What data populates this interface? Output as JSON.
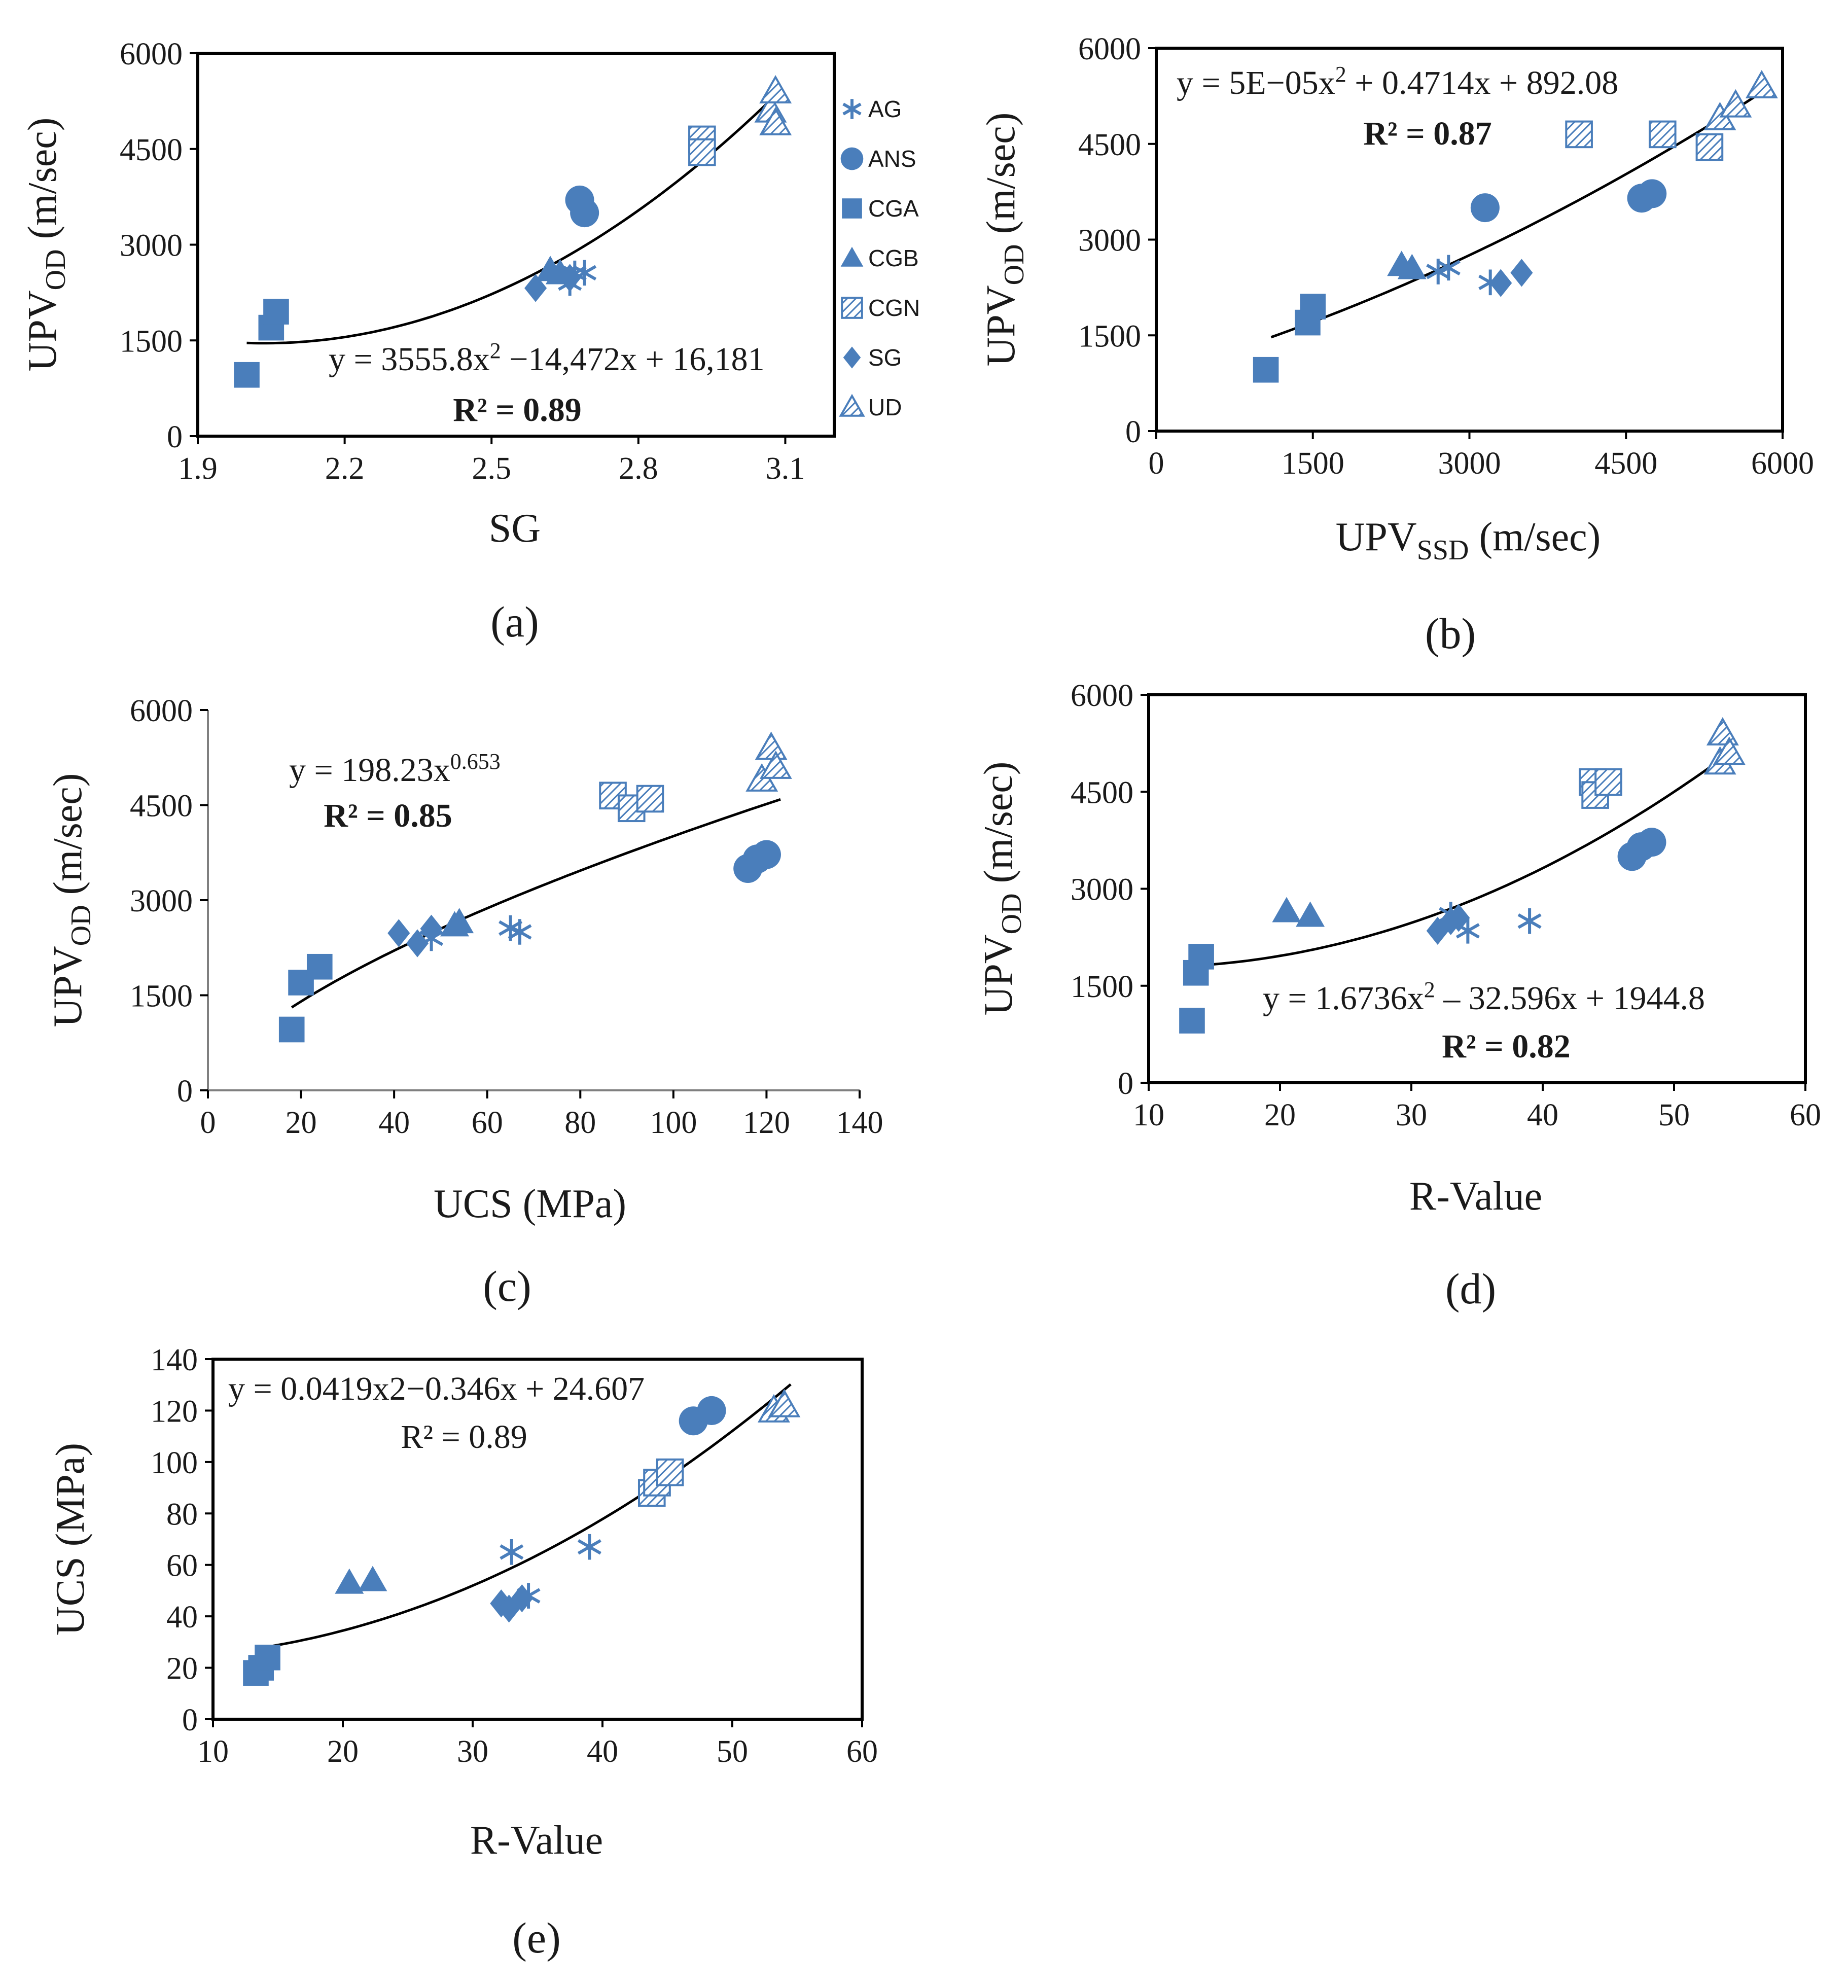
{
  "figure": {
    "marker_color": "#4a7ebb",
    "axis_color": "#000000",
    "trend_color": "#000000",
    "legend": [
      {
        "key": "AG",
        "label": "AG",
        "marker": "asterisk"
      },
      {
        "key": "ANS",
        "label": "ANS",
        "marker": "circle"
      },
      {
        "key": "CGA",
        "label": "CGA",
        "marker": "square"
      },
      {
        "key": "CGB",
        "label": "CGB",
        "marker": "triangle"
      },
      {
        "key": "CGN",
        "label": "CGN",
        "marker": "hatched-square"
      },
      {
        "key": "SG",
        "label": "SG",
        "marker": "diamond"
      },
      {
        "key": "UD",
        "label": "UD",
        "marker": "hatched-triangle"
      }
    ]
  },
  "chart_data": [
    {
      "id": "a",
      "type": "scatter",
      "caption": "(a)",
      "xlabel": "SG",
      "ylabel_main": "UPV",
      "ylabel_sub": "OD",
      "ylabel_tail": " (m/sec)",
      "xlim": [
        1.9,
        3.2
      ],
      "ylim": [
        0,
        6000
      ],
      "xticks": [
        1.9,
        2.2,
        2.5,
        2.8,
        3.1
      ],
      "xtick_labels": [
        "1.9",
        "2.2",
        "2.5",
        "2.8",
        "3.1"
      ],
      "yticks": [
        0,
        1500,
        3000,
        4500,
        6000
      ],
      "ytick_labels": [
        "0",
        "1500",
        "3000",
        "4500",
        "6000"
      ],
      "equation": {
        "pre": "y = 3555.8x",
        "sup": "2",
        "post": " −14,472x + 16,181"
      },
      "r2": "R² = 0.89",
      "r2_bold": true,
      "trend": {
        "kind": "poly",
        "coef": [
          16181,
          -14472,
          3555.8
        ],
        "xrange": [
          2.0,
          3.08
        ]
      },
      "series": [
        {
          "name": "AG",
          "points": [
            [
              2.66,
              2400
            ],
            [
              2.67,
              2550
            ],
            [
              2.69,
              2560
            ]
          ]
        },
        {
          "name": "ANS",
          "points": [
            [
              2.68,
              3700
            ],
            [
              2.69,
              3500
            ]
          ]
        },
        {
          "name": "CGA",
          "points": [
            [
              2.0,
              960
            ],
            [
              2.05,
              1700
            ],
            [
              2.06,
              1950
            ]
          ]
        },
        {
          "name": "CGB",
          "points": [
            [
              2.62,
              2600
            ],
            [
              2.64,
              2550
            ]
          ]
        },
        {
          "name": "CGN",
          "points": [
            [
              2.93,
              4650
            ],
            [
              2.93,
              4450
            ]
          ]
        },
        {
          "name": "SG",
          "points": [
            [
              2.59,
              2320
            ],
            [
              2.66,
              2480
            ]
          ]
        },
        {
          "name": "UD",
          "points": [
            [
              3.07,
              5100
            ],
            [
              3.08,
              5400
            ],
            [
              3.08,
              4900
            ]
          ]
        }
      ]
    },
    {
      "id": "b",
      "type": "scatter",
      "caption": "(b)",
      "xlabel_main": "UPV",
      "xlabel_sub": "SSD",
      "xlabel_tail": " (m/sec)",
      "ylabel_main": "UPV",
      "ylabel_sub": "OD",
      "ylabel_tail": " (m/sec)",
      "xlim": [
        0,
        6000
      ],
      "ylim": [
        0,
        6000
      ],
      "xticks": [
        0,
        1500,
        3000,
        4500,
        6000
      ],
      "xtick_labels": [
        "0",
        "1500",
        "3000",
        "4500",
        "6000"
      ],
      "yticks": [
        0,
        1500,
        3000,
        4500,
        6000
      ],
      "ytick_labels": [
        "0",
        "1500",
        "3000",
        "4500",
        "6000"
      ],
      "equation": {
        "pre": "y = 5E−05x",
        "sup": "2",
        "post": " + 0.4714x + 892.08"
      },
      "r2": "R² = 0.87",
      "r2_bold": true,
      "trend": {
        "kind": "poly",
        "coef": [
          892.08,
          0.4714,
          5e-05
        ],
        "xrange": [
          1100,
          5800
        ]
      },
      "series": [
        {
          "name": "AG",
          "points": [
            [
              2700,
              2500
            ],
            [
              2800,
              2560
            ],
            [
              3200,
              2330
            ]
          ]
        },
        {
          "name": "ANS",
          "points": [
            [
              3150,
              3500
            ],
            [
              4650,
              3650
            ],
            [
              4750,
              3720
            ]
          ]
        },
        {
          "name": "CGA",
          "points": [
            [
              1050,
              960
            ],
            [
              1450,
              1700
            ],
            [
              1500,
              1950
            ]
          ]
        },
        {
          "name": "CGB",
          "points": [
            [
              2350,
              2600
            ],
            [
              2450,
              2550
            ]
          ]
        },
        {
          "name": "CGN",
          "points": [
            [
              4050,
              4650
            ],
            [
              4850,
              4650
            ],
            [
              5300,
              4450
            ]
          ]
        },
        {
          "name": "SG",
          "points": [
            [
              3300,
              2320
            ],
            [
              3500,
              2480
            ]
          ]
        },
        {
          "name": "UD",
          "points": [
            [
              5400,
              4900
            ],
            [
              5550,
              5100
            ],
            [
              5800,
              5400
            ]
          ]
        }
      ]
    },
    {
      "id": "c",
      "type": "scatter",
      "caption": "(c)",
      "xlabel": "UCS  (MPa)",
      "ylabel_main": "UPV",
      "ylabel_sub": "OD",
      "ylabel_tail": " (m/sec)",
      "xlim": [
        0,
        140
      ],
      "ylim": [
        0,
        6000
      ],
      "xticks": [
        0,
        20,
        40,
        60,
        80,
        100,
        120,
        140
      ],
      "xtick_labels": [
        "0",
        "20",
        "40",
        "60",
        "80",
        "100",
        "120",
        "140"
      ],
      "yticks": [
        0,
        1500,
        3000,
        4500,
        6000
      ],
      "ytick_labels": [
        "0",
        "1500",
        "3000",
        "4500",
        "6000"
      ],
      "equation": {
        "pre": "y = 198.23x",
        "sup": "0.653",
        "post": ""
      },
      "r2": "R² = 0.85",
      "r2_bold": true,
      "trend": {
        "kind": "power",
        "a": 198.23,
        "b": 0.653,
        "xrange": [
          18,
          123
        ]
      },
      "series": [
        {
          "name": "AG",
          "points": [
            [
              48,
              2400
            ],
            [
              65,
              2560
            ],
            [
              67,
              2500
            ]
          ]
        },
        {
          "name": "ANS",
          "points": [
            [
              116,
              3500
            ],
            [
              118,
              3650
            ],
            [
              120,
              3720
            ]
          ]
        },
        {
          "name": "CGA",
          "points": [
            [
              18,
              960
            ],
            [
              20,
              1700
            ],
            [
              24,
              1950
            ]
          ]
        },
        {
          "name": "CGB",
          "points": [
            [
              53,
              2600
            ],
            [
              54,
              2650
            ]
          ]
        },
        {
          "name": "CGN",
          "points": [
            [
              87,
              4650
            ],
            [
              91,
              4450
            ],
            [
              95,
              4600
            ]
          ]
        },
        {
          "name": "SG",
          "points": [
            [
              41,
              2480
            ],
            [
              45,
              2320
            ],
            [
              48,
              2550
            ]
          ]
        },
        {
          "name": "UD",
          "points": [
            [
              119,
              4900
            ],
            [
              121,
              5400
            ],
            [
              122,
              5100
            ]
          ]
        }
      ]
    },
    {
      "id": "d",
      "type": "scatter",
      "caption": "(d)",
      "xlabel": "R-Value",
      "ylabel_main": "UPV",
      "ylabel_sub": "OD",
      "ylabel_tail": " (m/sec)",
      "xlim": [
        10,
        60
      ],
      "ylim": [
        0,
        6000
      ],
      "xticks": [
        10,
        20,
        30,
        40,
        50,
        60
      ],
      "xtick_labels": [
        "10",
        "20",
        "30",
        "40",
        "50",
        "60"
      ],
      "yticks": [
        0,
        1500,
        3000,
        4500,
        6000
      ],
      "ytick_labels": [
        "0",
        "1500",
        "3000",
        "4500",
        "6000"
      ],
      "equation": {
        "pre": "y = 1.6736x",
        "sup": "2",
        "post": " – 32.596x + 1944.8"
      },
      "r2": "R² = 0.82",
      "r2_bold": true,
      "trend": {
        "kind": "poly",
        "coef": [
          1944.8,
          -32.596,
          1.6736
        ],
        "xrange": [
          13.5,
          54
        ]
      },
      "series": [
        {
          "name": "AG",
          "points": [
            [
              33,
              2600
            ],
            [
              34.3,
              2350
            ],
            [
              39,
              2500
            ]
          ]
        },
        {
          "name": "ANS",
          "points": [
            [
              46.8,
              3500
            ],
            [
              47.5,
              3650
            ],
            [
              48.3,
              3720
            ]
          ]
        },
        {
          "name": "CGA",
          "points": [
            [
              13.3,
              960
            ],
            [
              13.6,
              1700
            ],
            [
              14,
              1950
            ]
          ]
        },
        {
          "name": "CGB",
          "points": [
            [
              20.5,
              2650
            ],
            [
              22.3,
              2580
            ]
          ]
        },
        {
          "name": "CGN",
          "points": [
            [
              43.8,
              4650
            ],
            [
              44,
              4450
            ],
            [
              45,
              4650
            ]
          ]
        },
        {
          "name": "SG",
          "points": [
            [
              32,
              2350
            ],
            [
              33,
              2500
            ],
            [
              33.6,
              2550
            ]
          ]
        },
        {
          "name": "UD",
          "points": [
            [
              53.5,
              4950
            ],
            [
              53.7,
              5400
            ],
            [
              54.2,
              5100
            ]
          ]
        }
      ]
    },
    {
      "id": "e",
      "type": "scatter",
      "caption": "(e)",
      "xlabel": "R-Value",
      "ylabel_main": "UCS (MPa)",
      "ylabel_sub": "",
      "ylabel_tail": "",
      "xlim": [
        10,
        60
      ],
      "ylim": [
        0,
        140
      ],
      "xticks": [
        10,
        20,
        30,
        40,
        50,
        60
      ],
      "xtick_labels": [
        "10",
        "20",
        "30",
        "40",
        "50",
        "60"
      ],
      "yticks": [
        0,
        20,
        40,
        60,
        80,
        100,
        120,
        140
      ],
      "ytick_labels": [
        "0",
        "20",
        "40",
        "60",
        "80",
        "100",
        "120",
        "140"
      ],
      "equation": {
        "pre": "y = 0.0419x2−0.346x + 24.607",
        "sup": "",
        "post": ""
      },
      "r2": "R² = 0.89",
      "r2_bold": false,
      "trend": {
        "kind": "poly",
        "coef": [
          24.607,
          -0.346,
          0.0419
        ],
        "xrange": [
          13.5,
          54.5
        ]
      },
      "series": [
        {
          "name": "AG",
          "points": [
            [
              33,
              65
            ],
            [
              34.3,
              48
            ],
            [
              39,
              67
            ]
          ]
        },
        {
          "name": "ANS",
          "points": [
            [
              47,
              116
            ],
            [
              48.4,
              120
            ]
          ]
        },
        {
          "name": "CGA",
          "points": [
            [
              13.3,
              18
            ],
            [
              13.7,
              20
            ],
            [
              14.2,
              24
            ]
          ]
        },
        {
          "name": "CGB",
          "points": [
            [
              20.5,
              53
            ],
            [
              22.3,
              54
            ]
          ]
        },
        {
          "name": "CGN",
          "points": [
            [
              43.8,
              88
            ],
            [
              44.2,
              92
            ],
            [
              45.2,
              96
            ]
          ]
        },
        {
          "name": "SG",
          "points": [
            [
              32.2,
              45
            ],
            [
              32.8,
              43
            ],
            [
              33.8,
              47
            ]
          ]
        },
        {
          "name": "UD",
          "points": [
            [
              53.2,
              120
            ],
            [
              54,
              122
            ]
          ]
        }
      ]
    }
  ]
}
